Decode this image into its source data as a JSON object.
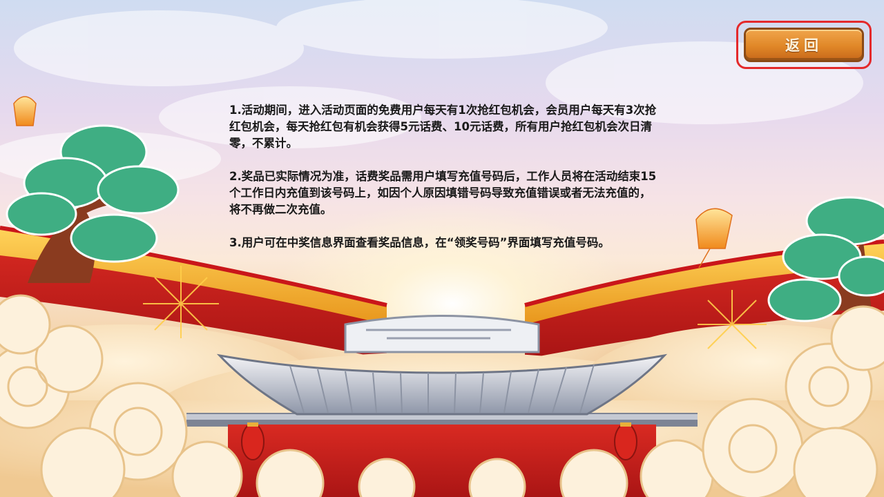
{
  "back_button": {
    "label": "返回"
  },
  "rules": {
    "items": [
      "1.活动期间，进入活动页面的免费用户每天有1次抢红包机会，会员用户每天有3次抢红包机会，每天抢红包有机会获得5元话费、10元话费，所有用户抢红包机会次日清零，不累计。",
      "2.奖品已实际情况为准，话费奖品需用户填写充值号码后，工作人员将在活动结束15个工作日内充值到该号码上，如因个人原因填错号码导致充值错误或者无法充值的，将不再做二次充值。",
      "3.用户可在中奖信息界面查看奖品信息，在“领奖号码”界面填写充值号码。"
    ]
  },
  "colors": {
    "accent": "#e08727",
    "frame_red": "#e4292b",
    "wall_red": "#c81e1e",
    "roof_yellow": "#f5b52a",
    "tree_green": "#3fae83"
  },
  "icons": [
    "sky-lantern-icon",
    "pine-tree-icon",
    "firework-icon",
    "cloud-icon",
    "palace-roof-icon",
    "red-lantern-icon"
  ]
}
